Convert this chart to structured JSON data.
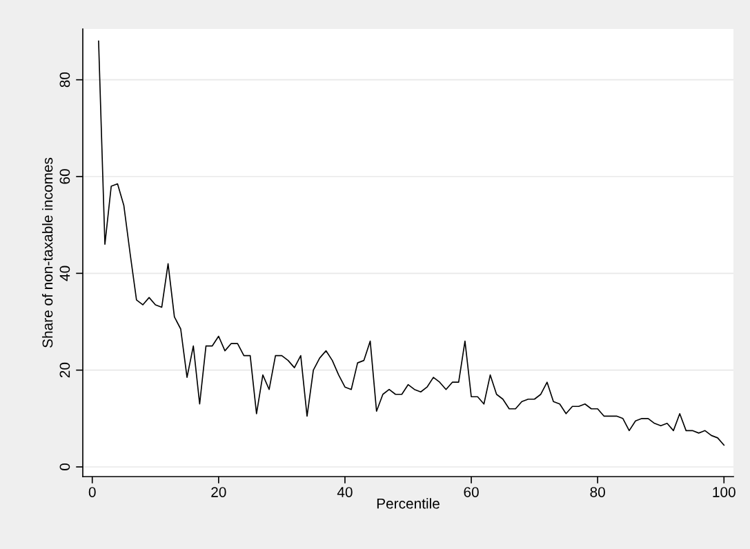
{
  "chart_data": {
    "type": "line",
    "xlabel": "Percentile",
    "ylabel": "Share of non-taxable incomes",
    "x": [
      1,
      2,
      3,
      4,
      5,
      6,
      7,
      8,
      9,
      10,
      11,
      12,
      13,
      14,
      15,
      16,
      17,
      18,
      19,
      20,
      21,
      22,
      23,
      24,
      25,
      26,
      27,
      28,
      29,
      30,
      31,
      32,
      33,
      34,
      35,
      36,
      37,
      38,
      39,
      40,
      41,
      42,
      43,
      44,
      45,
      46,
      47,
      48,
      49,
      50,
      51,
      52,
      53,
      54,
      55,
      56,
      57,
      58,
      59,
      60,
      61,
      62,
      63,
      64,
      65,
      66,
      67,
      68,
      69,
      70,
      71,
      72,
      73,
      74,
      75,
      76,
      77,
      78,
      79,
      80,
      81,
      82,
      83,
      84,
      85,
      86,
      87,
      88,
      89,
      90,
      91,
      92,
      93,
      94,
      95,
      96,
      97,
      98,
      99,
      100
    ],
    "series": [
      {
        "color": "#000000",
        "values": [
          88,
          46,
          58,
          58.5,
          54,
          44,
          34.5,
          33.5,
          35,
          33.5,
          33,
          42,
          31,
          28.5,
          18.5,
          25,
          13,
          25,
          25,
          27,
          24,
          25.5,
          25.5,
          23,
          23,
          11,
          19,
          16,
          23,
          23,
          22,
          20.5,
          23,
          10.5,
          20,
          22.5,
          24,
          22,
          19,
          16.5,
          16,
          21.5,
          22,
          26,
          11.5,
          15,
          16,
          15,
          15,
          17,
          16,
          15.5,
          16.5,
          18.5,
          17.5,
          16,
          17.5,
          17.5,
          26,
          14.5,
          14.5,
          13,
          19,
          15,
          14,
          12,
          12,
          13.5,
          14,
          14,
          15,
          17.5,
          13.5,
          13,
          11,
          12.5,
          12.5,
          13,
          12,
          12,
          10.5,
          10.5,
          10.5,
          10,
          7.5,
          9.5,
          10,
          10,
          9,
          8.5,
          9,
          7.5,
          11,
          7.5,
          7.5,
          7,
          7.5,
          6.5,
          6,
          4.5
        ]
      }
    ],
    "xlim": [
      -1.5,
      101.5
    ],
    "ylim": [
      -2,
      90.5
    ],
    "xticks": [
      0,
      20,
      40,
      60,
      80,
      100
    ],
    "yticks": [
      0,
      20,
      40,
      60,
      80
    ],
    "grid": "y",
    "marker": "none",
    "line_style": "solid",
    "legend": false
  }
}
